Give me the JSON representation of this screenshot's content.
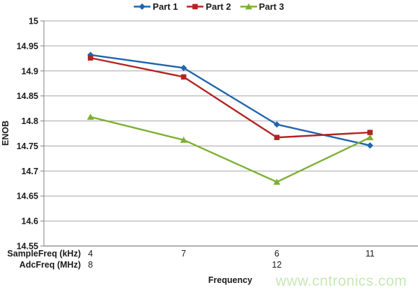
{
  "watermark": "www.cntronics.com",
  "chart_data": {
    "type": "line",
    "title": "",
    "xlabel": "Frequency",
    "ylabel": "ENOB",
    "ylim": [
      14.55,
      15
    ],
    "ytick_step": 0.05,
    "yticks": [
      "15",
      "14.95",
      "14.9",
      "14.85",
      "14.8",
      "14.75",
      "14.7",
      "14.65",
      "14.6",
      "14.55"
    ],
    "grid": true,
    "legend_position": "top",
    "x_rows": [
      {
        "label": "SampleFreq (kHz)",
        "values": [
          "4",
          "7",
          "6",
          "11"
        ]
      },
      {
        "label": "AdcFreq (MHz)",
        "values": [
          "8",
          "",
          "12",
          ""
        ]
      }
    ],
    "series": [
      {
        "name": "Part 1",
        "marker": "diamond",
        "color": "#2065ae",
        "values": [
          14.932,
          14.906,
          14.793,
          14.751
        ]
      },
      {
        "name": "Part 2",
        "marker": "square",
        "color": "#b22422",
        "values": [
          14.926,
          14.888,
          14.767,
          14.777
        ]
      },
      {
        "name": "Part 3",
        "marker": "triangle",
        "color": "#7cb032",
        "values": [
          14.808,
          14.762,
          14.678,
          14.767
        ]
      }
    ],
    "colors": {
      "grid": "#a6a6a6",
      "axis": "#808080",
      "tick_text": "#1a1a1a",
      "watermark": "#c7e8b6"
    }
  }
}
